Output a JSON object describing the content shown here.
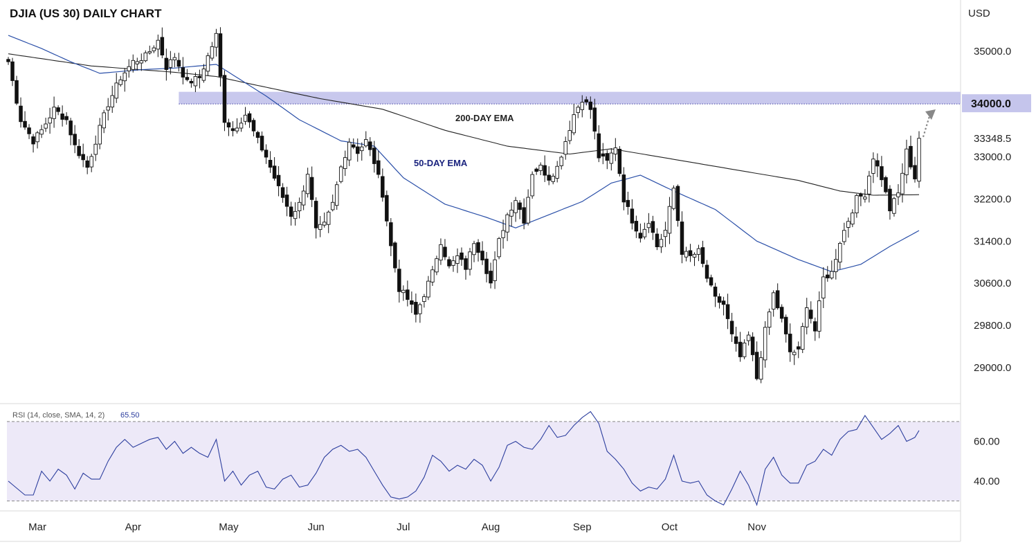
{
  "chart_data": {
    "type": "candlestick",
    "title": "DJIA (US 30) DAILY CHART",
    "currency": "USD",
    "x_labels": [
      "Mar",
      "Apr",
      "May",
      "Jun",
      "Jul",
      "Aug",
      "Sep",
      "Oct",
      "Nov"
    ],
    "y_ticks": [
      29000.0,
      29800.0,
      30600.0,
      31400.0,
      32200.0,
      33000.0,
      35000.0
    ],
    "y_tick_labels": [
      "29000.0",
      "29800.0",
      "30600.0",
      "31400.0",
      "32200.0",
      "33000.0",
      "35000.0"
    ],
    "ylim": [
      28320,
      35970
    ],
    "resistance_zone": {
      "low": 34000,
      "high": 34230,
      "label": "34000.0",
      "color": "#c5c5ec"
    },
    "last_price": {
      "value": 33348.5,
      "label": "33348.5"
    },
    "annotations": [
      {
        "text": "200-DAY EMA",
        "color": "#222222"
      },
      {
        "text": "50-DAY EMA",
        "color": "#1a237e"
      }
    ],
    "anchors": [
      {
        "i": 0,
        "v": 34800
      },
      {
        "i": 3,
        "v": 33700
      },
      {
        "i": 6,
        "v": 33300
      },
      {
        "i": 8,
        "v": 33500
      },
      {
        "i": 11,
        "v": 33900
      },
      {
        "i": 14,
        "v": 33700
      },
      {
        "i": 16,
        "v": 33200
      },
      {
        "i": 19,
        "v": 32800
      },
      {
        "i": 21,
        "v": 33300
      },
      {
        "i": 24,
        "v": 34000
      },
      {
        "i": 27,
        "v": 34500
      },
      {
        "i": 30,
        "v": 34800
      },
      {
        "i": 33,
        "v": 34900
      },
      {
        "i": 36,
        "v": 35200
      },
      {
        "i": 38,
        "v": 34700
      },
      {
        "i": 40,
        "v": 34900
      },
      {
        "i": 43,
        "v": 34400
      },
      {
        "i": 46,
        "v": 34500
      },
      {
        "i": 48,
        "v": 34900
      },
      {
        "i": 50,
        "v": 35300
      },
      {
        "i": 52,
        "v": 33700
      },
      {
        "i": 54,
        "v": 33500
      },
      {
        "i": 57,
        "v": 33800
      },
      {
        "i": 60,
        "v": 33300
      },
      {
        "i": 62,
        "v": 33000
      },
      {
        "i": 65,
        "v": 32400
      },
      {
        "i": 68,
        "v": 31900
      },
      {
        "i": 70,
        "v": 32100
      },
      {
        "i": 72,
        "v": 32700
      },
      {
        "i": 74,
        "v": 31600
      },
      {
        "i": 76,
        "v": 31700
      },
      {
        "i": 78,
        "v": 32100
      },
      {
        "i": 80,
        "v": 32800
      },
      {
        "i": 82,
        "v": 33300
      },
      {
        "i": 84,
        "v": 33100
      },
      {
        "i": 86,
        "v": 33300
      },
      {
        "i": 88,
        "v": 32900
      },
      {
        "i": 90,
        "v": 32300
      },
      {
        "i": 92,
        "v": 31300
      },
      {
        "i": 94,
        "v": 30500
      },
      {
        "i": 96,
        "v": 30300
      },
      {
        "i": 98,
        "v": 30000
      },
      {
        "i": 100,
        "v": 30400
      },
      {
        "i": 102,
        "v": 30800
      },
      {
        "i": 104,
        "v": 31400
      },
      {
        "i": 106,
        "v": 30900
      },
      {
        "i": 108,
        "v": 31100
      },
      {
        "i": 110,
        "v": 30900
      },
      {
        "i": 112,
        "v": 31400
      },
      {
        "i": 114,
        "v": 31100
      },
      {
        "i": 116,
        "v": 30600
      },
      {
        "i": 118,
        "v": 31400
      },
      {
        "i": 120,
        "v": 31900
      },
      {
        "i": 122,
        "v": 32200
      },
      {
        "i": 124,
        "v": 31800
      },
      {
        "i": 126,
        "v": 32700
      },
      {
        "i": 128,
        "v": 32800
      },
      {
        "i": 130,
        "v": 32600
      },
      {
        "i": 132,
        "v": 32800
      },
      {
        "i": 134,
        "v": 33300
      },
      {
        "i": 136,
        "v": 33800
      },
      {
        "i": 138,
        "v": 34100
      },
      {
        "i": 140,
        "v": 33900
      },
      {
        "i": 142,
        "v": 33000
      },
      {
        "i": 144,
        "v": 32900
      },
      {
        "i": 146,
        "v": 33200
      },
      {
        "i": 148,
        "v": 32200
      },
      {
        "i": 150,
        "v": 31800
      },
      {
        "i": 152,
        "v": 31500
      },
      {
        "i": 154,
        "v": 31800
      },
      {
        "i": 156,
        "v": 31300
      },
      {
        "i": 158,
        "v": 31600
      },
      {
        "i": 160,
        "v": 32400
      },
      {
        "i": 162,
        "v": 31200
      },
      {
        "i": 164,
        "v": 31100
      },
      {
        "i": 166,
        "v": 31200
      },
      {
        "i": 168,
        "v": 30700
      },
      {
        "i": 170,
        "v": 30300
      },
      {
        "i": 172,
        "v": 30200
      },
      {
        "i": 174,
        "v": 29600
      },
      {
        "i": 176,
        "v": 29200
      },
      {
        "i": 178,
        "v": 29600
      },
      {
        "i": 180,
        "v": 28800
      },
      {
        "i": 182,
        "v": 29700
      },
      {
        "i": 184,
        "v": 30400
      },
      {
        "i": 186,
        "v": 29900
      },
      {
        "i": 188,
        "v": 29300
      },
      {
        "i": 190,
        "v": 29300
      },
      {
        "i": 192,
        "v": 30200
      },
      {
        "i": 194,
        "v": 29700
      },
      {
        "i": 196,
        "v": 30700
      },
      {
        "i": 198,
        "v": 30800
      },
      {
        "i": 200,
        "v": 31400
      },
      {
        "i": 202,
        "v": 31800
      },
      {
        "i": 204,
        "v": 32200
      },
      {
        "i": 206,
        "v": 32300
      },
      {
        "i": 208,
        "v": 33000
      },
      {
        "i": 210,
        "v": 32600
      },
      {
        "i": 212,
        "v": 32000
      },
      {
        "i": 214,
        "v": 32300
      },
      {
        "i": 216,
        "v": 33100
      },
      {
        "i": 218,
        "v": 32600
      },
      {
        "i": 219,
        "v": 33350
      }
    ],
    "ema200": [
      {
        "i": 0,
        "v": 34950
      },
      {
        "i": 20,
        "v": 34720
      },
      {
        "i": 40,
        "v": 34600
      },
      {
        "i": 50,
        "v": 34520
      },
      {
        "i": 60,
        "v": 34350
      },
      {
        "i": 75,
        "v": 34100
      },
      {
        "i": 90,
        "v": 33900
      },
      {
        "i": 105,
        "v": 33500
      },
      {
        "i": 120,
        "v": 33200
      },
      {
        "i": 135,
        "v": 33050
      },
      {
        "i": 145,
        "v": 33150
      },
      {
        "i": 160,
        "v": 32950
      },
      {
        "i": 175,
        "v": 32750
      },
      {
        "i": 190,
        "v": 32550
      },
      {
        "i": 200,
        "v": 32350
      },
      {
        "i": 208,
        "v": 32270
      },
      {
        "i": 219,
        "v": 32280
      }
    ],
    "ema50": [
      {
        "i": 0,
        "v": 35300
      },
      {
        "i": 8,
        "v": 35050
      },
      {
        "i": 15,
        "v": 34800
      },
      {
        "i": 22,
        "v": 34580
      },
      {
        "i": 32,
        "v": 34650
      },
      {
        "i": 40,
        "v": 34680
      },
      {
        "i": 50,
        "v": 34750
      },
      {
        "i": 55,
        "v": 34500
      },
      {
        "i": 62,
        "v": 34150
      },
      {
        "i": 70,
        "v": 33700
      },
      {
        "i": 80,
        "v": 33300
      },
      {
        "i": 88,
        "v": 33200
      },
      {
        "i": 95,
        "v": 32600
      },
      {
        "i": 105,
        "v": 32100
      },
      {
        "i": 115,
        "v": 31850
      },
      {
        "i": 122,
        "v": 31650
      },
      {
        "i": 130,
        "v": 31900
      },
      {
        "i": 138,
        "v": 32150
      },
      {
        "i": 145,
        "v": 32500
      },
      {
        "i": 152,
        "v": 32650
      },
      {
        "i": 160,
        "v": 32350
      },
      {
        "i": 170,
        "v": 32000
      },
      {
        "i": 180,
        "v": 31400
      },
      {
        "i": 190,
        "v": 31050
      },
      {
        "i": 198,
        "v": 30820
      },
      {
        "i": 205,
        "v": 30960
      },
      {
        "i": 212,
        "v": 31300
      },
      {
        "i": 219,
        "v": 31600
      }
    ]
  },
  "rsi_panel": {
    "label": "RSI (14, close, SMA, 14, 2)",
    "current_value": "65.50",
    "y_ticks": [
      40,
      60
    ],
    "y_tick_labels": [
      "40.00",
      "60.00"
    ],
    "upper_band": 70,
    "lower_band": 30,
    "ylim": [
      25,
      79
    ],
    "line_color": "#2c3e9e",
    "anchors": [
      {
        "i": 0,
        "v": 40
      },
      {
        "i": 4,
        "v": 33
      },
      {
        "i": 6,
        "v": 33
      },
      {
        "i": 8,
        "v": 45
      },
      {
        "i": 10,
        "v": 40
      },
      {
        "i": 12,
        "v": 46
      },
      {
        "i": 14,
        "v": 43
      },
      {
        "i": 16,
        "v": 36
      },
      {
        "i": 18,
        "v": 44
      },
      {
        "i": 20,
        "v": 41
      },
      {
        "i": 22,
        "v": 41
      },
      {
        "i": 24,
        "v": 50
      },
      {
        "i": 26,
        "v": 57
      },
      {
        "i": 28,
        "v": 61
      },
      {
        "i": 30,
        "v": 57
      },
      {
        "i": 32,
        "v": 59
      },
      {
        "i": 34,
        "v": 61
      },
      {
        "i": 36,
        "v": 62
      },
      {
        "i": 38,
        "v": 56
      },
      {
        "i": 40,
        "v": 60
      },
      {
        "i": 42,
        "v": 54
      },
      {
        "i": 44,
        "v": 57
      },
      {
        "i": 46,
        "v": 54
      },
      {
        "i": 48,
        "v": 52
      },
      {
        "i": 50,
        "v": 61
      },
      {
        "i": 52,
        "v": 40
      },
      {
        "i": 54,
        "v": 45
      },
      {
        "i": 56,
        "v": 38
      },
      {
        "i": 58,
        "v": 43
      },
      {
        "i": 60,
        "v": 45
      },
      {
        "i": 62,
        "v": 37
      },
      {
        "i": 64,
        "v": 36
      },
      {
        "i": 66,
        "v": 41
      },
      {
        "i": 68,
        "v": 43
      },
      {
        "i": 70,
        "v": 37
      },
      {
        "i": 72,
        "v": 38
      },
      {
        "i": 74,
        "v": 44
      },
      {
        "i": 76,
        "v": 52
      },
      {
        "i": 78,
        "v": 56
      },
      {
        "i": 80,
        "v": 58
      },
      {
        "i": 82,
        "v": 55
      },
      {
        "i": 84,
        "v": 56
      },
      {
        "i": 86,
        "v": 52
      },
      {
        "i": 88,
        "v": 45
      },
      {
        "i": 90,
        "v": 38
      },
      {
        "i": 92,
        "v": 32
      },
      {
        "i": 94,
        "v": 31
      },
      {
        "i": 96,
        "v": 32
      },
      {
        "i": 98,
        "v": 35
      },
      {
        "i": 100,
        "v": 42
      },
      {
        "i": 102,
        "v": 53
      },
      {
        "i": 104,
        "v": 50
      },
      {
        "i": 106,
        "v": 45
      },
      {
        "i": 108,
        "v": 48
      },
      {
        "i": 110,
        "v": 46
      },
      {
        "i": 112,
        "v": 51
      },
      {
        "i": 114,
        "v": 48
      },
      {
        "i": 116,
        "v": 40
      },
      {
        "i": 118,
        "v": 47
      },
      {
        "i": 120,
        "v": 58
      },
      {
        "i": 122,
        "v": 60
      },
      {
        "i": 124,
        "v": 57
      },
      {
        "i": 126,
        "v": 56
      },
      {
        "i": 128,
        "v": 61
      },
      {
        "i": 130,
        "v": 68
      },
      {
        "i": 132,
        "v": 62
      },
      {
        "i": 134,
        "v": 63
      },
      {
        "i": 136,
        "v": 68
      },
      {
        "i": 138,
        "v": 72
      },
      {
        "i": 140,
        "v": 75
      },
      {
        "i": 142,
        "v": 69
      },
      {
        "i": 144,
        "v": 55
      },
      {
        "i": 146,
        "v": 51
      },
      {
        "i": 148,
        "v": 46
      },
      {
        "i": 150,
        "v": 39
      },
      {
        "i": 152,
        "v": 35
      },
      {
        "i": 154,
        "v": 37
      },
      {
        "i": 156,
        "v": 36
      },
      {
        "i": 158,
        "v": 41
      },
      {
        "i": 160,
        "v": 53
      },
      {
        "i": 162,
        "v": 40
      },
      {
        "i": 164,
        "v": 39
      },
      {
        "i": 166,
        "v": 40
      },
      {
        "i": 168,
        "v": 33
      },
      {
        "i": 170,
        "v": 30
      },
      {
        "i": 172,
        "v": 28
      },
      {
        "i": 174,
        "v": 36
      },
      {
        "i": 176,
        "v": 45
      },
      {
        "i": 178,
        "v": 38
      },
      {
        "i": 180,
        "v": 28
      },
      {
        "i": 182,
        "v": 46
      },
      {
        "i": 184,
        "v": 52
      },
      {
        "i": 186,
        "v": 43
      },
      {
        "i": 188,
        "v": 39
      },
      {
        "i": 190,
        "v": 39
      },
      {
        "i": 192,
        "v": 48
      },
      {
        "i": 194,
        "v": 50
      },
      {
        "i": 196,
        "v": 56
      },
      {
        "i": 198,
        "v": 53
      },
      {
        "i": 200,
        "v": 61
      },
      {
        "i": 202,
        "v": 65
      },
      {
        "i": 204,
        "v": 66
      },
      {
        "i": 206,
        "v": 73
      },
      {
        "i": 208,
        "v": 67
      },
      {
        "i": 210,
        "v": 61
      },
      {
        "i": 212,
        "v": 64
      },
      {
        "i": 214,
        "v": 68
      },
      {
        "i": 216,
        "v": 60
      },
      {
        "i": 218,
        "v": 62
      },
      {
        "i": 219,
        "v": 65.5
      }
    ]
  }
}
